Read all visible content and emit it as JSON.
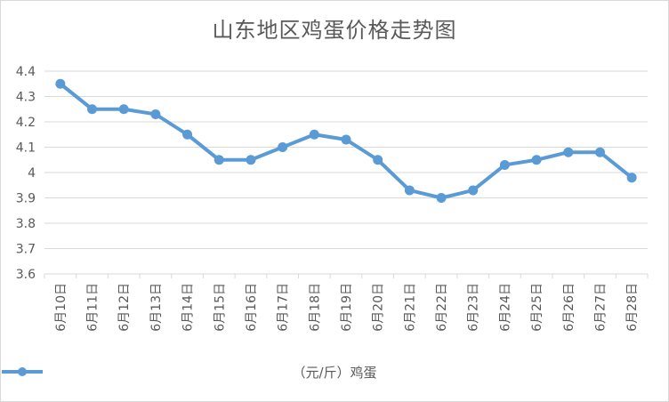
{
  "chart_data": {
    "type": "line",
    "title": "山东地区鸡蛋价格走势图",
    "categories": [
      "6月10日",
      "6月11日",
      "6月12日",
      "6月13日",
      "6月14日",
      "6月15日",
      "6月16日",
      "6月17日",
      "6月18日",
      "6月19日",
      "6月20日",
      "6月21日",
      "6月22日",
      "6月23日",
      "6月24日",
      "6月25日",
      "6月26日",
      "6月27日",
      "6月28日"
    ],
    "series": [
      {
        "name": "（元/斤）鸡蛋",
        "color": "#5b9bd5",
        "values": [
          4.35,
          4.25,
          4.25,
          4.23,
          4.15,
          4.05,
          4.05,
          4.1,
          4.15,
          4.13,
          4.05,
          3.93,
          3.9,
          3.93,
          4.03,
          4.05,
          4.08,
          4.08,
          3.98
        ]
      }
    ],
    "yticks": [
      "3.6",
      "3.7",
      "3.8",
      "3.9",
      "4",
      "4.1",
      "4.2",
      "4.3",
      "4.4"
    ],
    "ylim": [
      3.6,
      4.4
    ],
    "grid": true,
    "legend_position": "bottom"
  }
}
